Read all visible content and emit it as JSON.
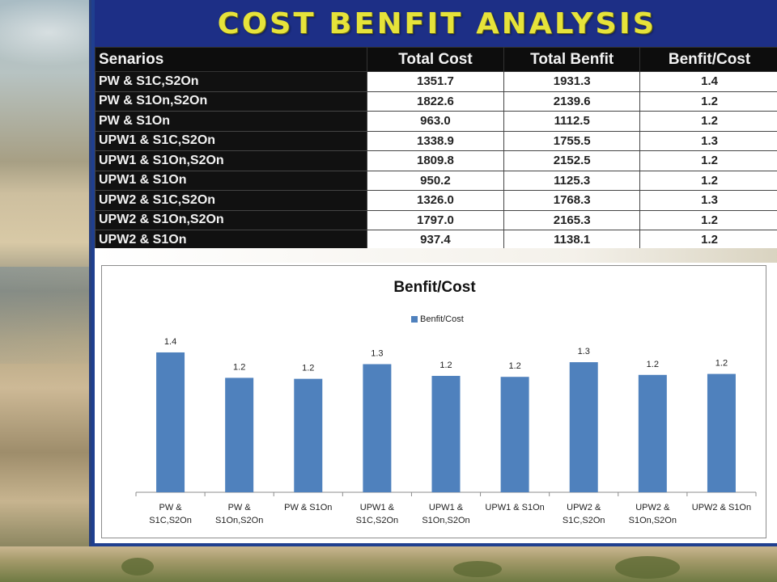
{
  "title": "COST BENFIT ANALYSIS",
  "table": {
    "headers": [
      "Senarios",
      "Total Cost",
      "Total Benfit",
      "Benfit/Cost"
    ],
    "rows": [
      [
        "PW & S1C,S2On",
        "1351.7",
        "1931.3",
        "1.4"
      ],
      [
        "PW & S1On,S2On",
        "1822.6",
        "2139.6",
        "1.2"
      ],
      [
        "PW & S1On",
        "963.0",
        "1112.5",
        "1.2"
      ],
      [
        "UPW1 & S1C,S2On",
        "1338.9",
        "1755.5",
        "1.3"
      ],
      [
        "UPW1 & S1On,S2On",
        "1809.8",
        "2152.5",
        "1.2"
      ],
      [
        "UPW1 & S1On",
        "950.2",
        "1125.3",
        "1.2"
      ],
      [
        "UPW2 & S1C,S2On",
        "1326.0",
        "1768.3",
        "1.3"
      ],
      [
        "UPW2 & S1On,S2On",
        "1797.0",
        "2165.3",
        "1.2"
      ],
      [
        "UPW2 & S1On",
        "937.4",
        "1138.1",
        "1.2"
      ]
    ]
  },
  "chart_data": {
    "type": "bar",
    "title": "Benfit/Cost",
    "legend_position": "top",
    "grid": false,
    "categories": [
      [
        "PW &",
        "S1C,S2On"
      ],
      [
        "PW &",
        "S1On,S2On"
      ],
      [
        "PW & S1On"
      ],
      [
        "UPW1 &",
        "S1C,S2On"
      ],
      [
        "UPW1 &",
        "S1On,S2On"
      ],
      [
        "UPW1 & S1On"
      ],
      [
        "UPW2 &",
        "S1C,S2On"
      ],
      [
        "UPW2 &",
        "S1On,S2On"
      ],
      [
        "UPW2 & S1On"
      ]
    ],
    "series": [
      {
        "name": "Benfit/Cost",
        "color": "#4f81bd",
        "values": [
          1.43,
          1.17,
          1.16,
          1.31,
          1.19,
          1.18,
          1.33,
          1.2,
          1.21
        ],
        "labels": [
          "1.4",
          "1.2",
          "1.2",
          "1.3",
          "1.2",
          "1.2",
          "1.3",
          "1.2",
          "1.2"
        ]
      }
    ],
    "ylim": [
      0,
      2.0
    ]
  }
}
